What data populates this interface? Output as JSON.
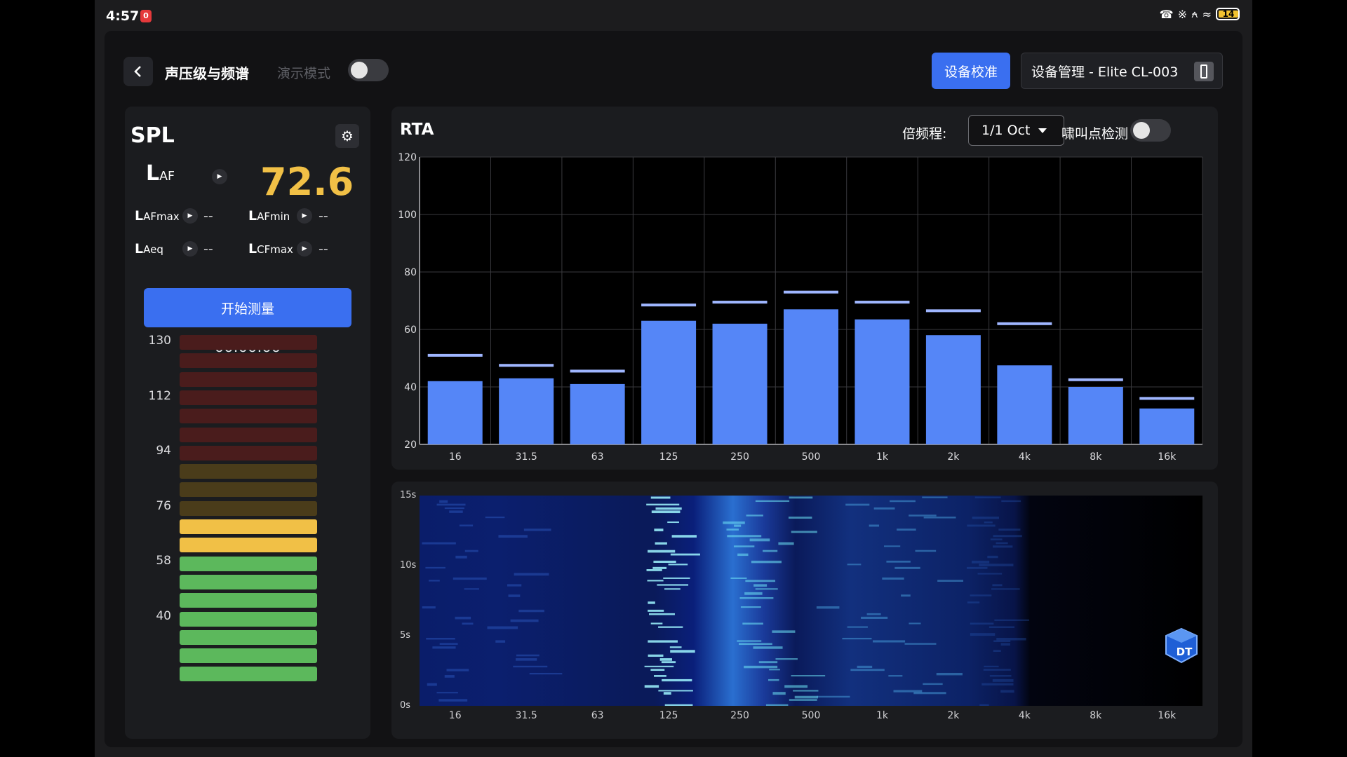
{
  "status": {
    "time": "4:57",
    "notif_badge": "0",
    "battery": "14"
  },
  "header": {
    "title": "声压级与频谱",
    "demo_mode_label": "演示模式",
    "demo_mode_on": false,
    "calibrate_label": "设备校准",
    "device_label": "设备管理 - Elite CL-003"
  },
  "spl": {
    "title": "SPL",
    "main": {
      "label": "L",
      "sub": "AF",
      "value": "72.6"
    },
    "metrics": [
      {
        "label": "L",
        "sub": "AFmax",
        "value": "--"
      },
      {
        "label": "L",
        "sub": "AFmin",
        "value": "--"
      },
      {
        "label": "L",
        "sub": "Aeq",
        "value": "--"
      },
      {
        "label": "L",
        "sub": "CFmax",
        "value": "--"
      }
    ],
    "start_label": "开始测量",
    "timer": "00:00:00",
    "meter_labels": [
      "130",
      "112",
      "94",
      "76",
      "58",
      "40"
    ],
    "meter_colors": {
      "red": "#4a1c1c",
      "olive": "#4a3c1a",
      "yellow": "#f1c046",
      "green": "#5cb85c"
    },
    "meter_segments": [
      "red",
      "red",
      "red",
      "red",
      "red",
      "red",
      "red",
      "olive",
      "olive",
      "olive",
      "yellow",
      "yellow",
      "green",
      "green",
      "green",
      "green",
      "green",
      "green",
      "green"
    ]
  },
  "rta": {
    "title": "RTA",
    "octave_label": "倍频程:",
    "octave_value": "1/1 Oct",
    "howl_label": "啸叫点检测",
    "howl_on": false
  },
  "chart_data": {
    "type": "bar",
    "title": "RTA",
    "categories": [
      "16",
      "31.5",
      "63",
      "125",
      "250",
      "500",
      "1k",
      "2k",
      "4k",
      "8k",
      "16k"
    ],
    "series": [
      {
        "values": [
          42,
          43,
          41,
          63,
          62,
          67,
          63.5,
          58,
          47.5,
          40,
          32.5
        ]
      },
      {
        "values": [
          51,
          47.5,
          45.5,
          68.5,
          69.5,
          73,
          69.5,
          66.5,
          62,
          42.5,
          36
        ]
      }
    ],
    "ylim": [
      20,
      120
    ],
    "yticks": [
      "20",
      "40",
      "60",
      "80",
      "100",
      "120"
    ],
    "bar_color": "#5586f7",
    "peak_color": "#9fb6ff",
    "grid": true
  },
  "spectrogram": {
    "y_labels": [
      "15s",
      "10s",
      "5s",
      "0s"
    ],
    "x_labels": [
      "16",
      "31.5",
      "63",
      "125",
      "250",
      "500",
      "1k",
      "2k",
      "4k",
      "8k",
      "16k"
    ],
    "logo_text": "DT"
  }
}
